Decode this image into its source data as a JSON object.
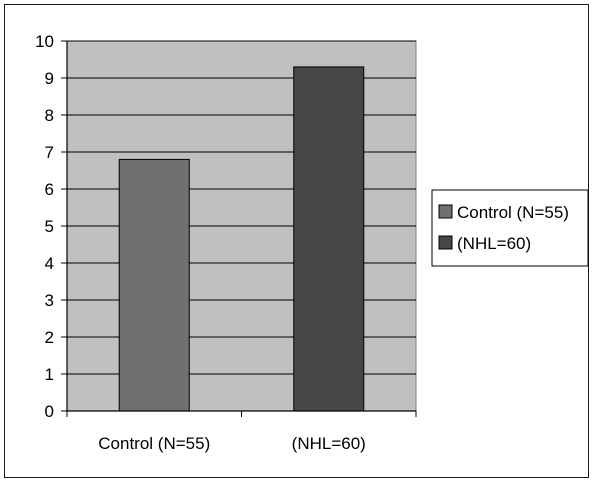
{
  "chart_data": {
    "type": "bar",
    "categories": [
      "Control (N=55)",
      "(NHL=60)"
    ],
    "series": [
      {
        "name": "Control (N=55)",
        "values": [
          6.8,
          null
        ],
        "color": "#707070"
      },
      {
        "name": "(NHL=60)",
        "values": [
          null,
          9.3
        ],
        "color": "#474747"
      }
    ],
    "values": [
      6.8,
      9.3
    ],
    "ylim": [
      0,
      10
    ],
    "yticks": [
      "0",
      "1",
      "2",
      "3",
      "4",
      "5",
      "6",
      "7",
      "8",
      "9",
      "10"
    ],
    "title": "",
    "xlabel": "",
    "ylabel": "",
    "grid": true,
    "legend_position": "right",
    "plot_background": "#c0c0c0",
    "legend": [
      {
        "label": "Control (N=55)",
        "color": "#707070"
      },
      {
        "label": "(NHL=60)",
        "color": "#474747"
      }
    ]
  }
}
